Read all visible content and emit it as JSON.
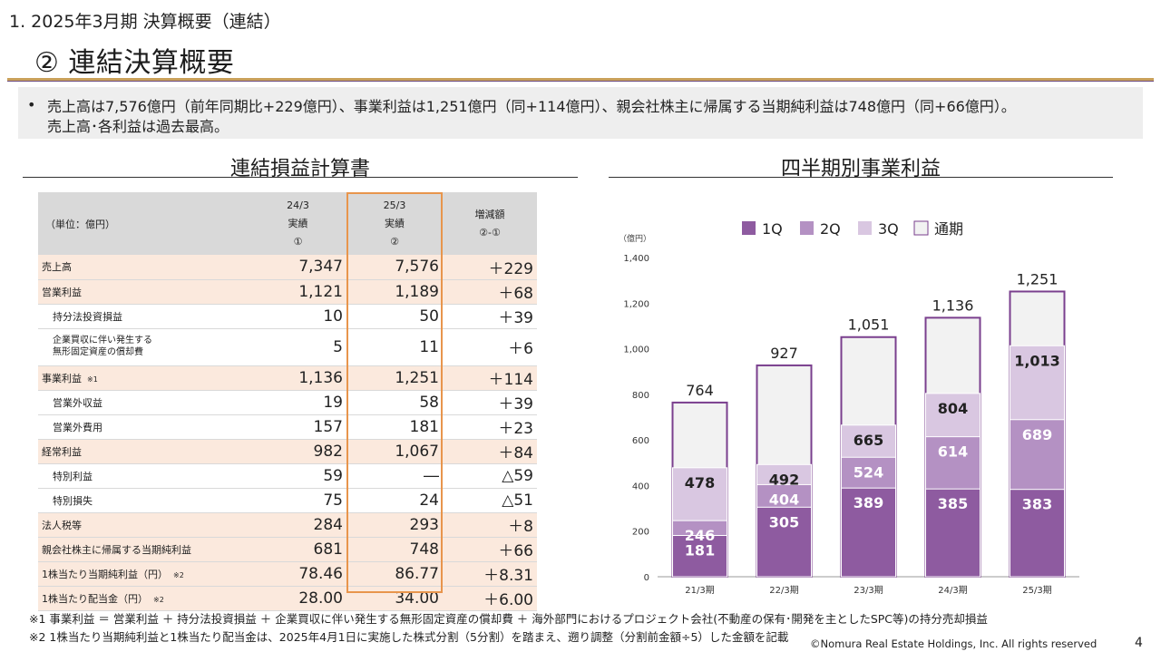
{
  "header": {
    "section_title": "1. 2025年3月期 決算概要（連結）",
    "page_title": "② 連結決算概要"
  },
  "summary": {
    "bullet": "•",
    "line1": "売上高は7,576億円（前年同期比+229億円）、事業利益は1,251億円（同+114億円）、親会社株主に帰属する当期純利益は748億円（同+66億円）。",
    "line2": "売上高･各利益は過去最高。"
  },
  "left_panel": {
    "heading": "連結損益計算書",
    "table": {
      "unit_label": "（単位：億円）",
      "columns": [
        {
          "period": "24/3",
          "kind": "実績",
          "marker": "①"
        },
        {
          "period": "25/3",
          "kind": "実績",
          "marker": "②"
        },
        {
          "period": "",
          "kind": "増減額",
          "marker": "②-①"
        }
      ],
      "rows": [
        {
          "label": "売上高",
          "note": "",
          "v1": "7,347",
          "v2": "7,576",
          "diff": "＋229",
          "style": "main"
        },
        {
          "label": "営業利益",
          "note": "",
          "v1": "1,121",
          "v2": "1,189",
          "diff": "＋68",
          "style": "main"
        },
        {
          "label": "持分法投資損益",
          "note": "",
          "v1": "10",
          "v2": "50",
          "diff": "＋39",
          "style": "sub"
        },
        {
          "label": "企業買収に伴い発生する",
          "label2": "無形固定資産の償却費",
          "note": "",
          "v1": "5",
          "v2": "11",
          "diff": "＋6",
          "style": "sub-tall"
        },
        {
          "label": "事業利益",
          "note": "※1",
          "v1": "1,136",
          "v2": "1,251",
          "diff": "＋114",
          "style": "main"
        },
        {
          "label": "営業外収益",
          "note": "",
          "v1": "19",
          "v2": "58",
          "diff": "＋39",
          "style": "sub"
        },
        {
          "label": "営業外費用",
          "note": "",
          "v1": "157",
          "v2": "181",
          "diff": "＋23",
          "style": "sub"
        },
        {
          "label": "経常利益",
          "note": "",
          "v1": "982",
          "v2": "1,067",
          "diff": "＋84",
          "style": "main"
        },
        {
          "label": "特別利益",
          "note": "",
          "v1": "59",
          "v2": "―",
          "diff": "△59",
          "style": "sub"
        },
        {
          "label": "特別損失",
          "note": "",
          "v1": "75",
          "v2": "24",
          "diff": "△51",
          "style": "sub"
        },
        {
          "label": "法人税等",
          "note": "",
          "v1": "284",
          "v2": "293",
          "diff": "＋8",
          "style": "main"
        },
        {
          "label": "親会社株主に帰属する当期純利益",
          "note": "",
          "v1": "681",
          "v2": "748",
          "diff": "＋66",
          "style": "main"
        },
        {
          "label": "1株当たり当期純利益（円）",
          "note": "※2",
          "v1": "78.46",
          "v2": "86.77",
          "diff": "＋8.31",
          "style": "main"
        },
        {
          "label": "1株当たり配当金（円）",
          "note": "※2",
          "v1": "28.00",
          "v2": "34.00",
          "diff": "＋6.00",
          "style": "main"
        }
      ]
    }
  },
  "right_panel": {
    "heading": "四半期別事業利益"
  },
  "chart_data": {
    "type": "bar",
    "title": "",
    "unit_label": "（億円）",
    "categories": [
      "21/3期",
      "22/3期",
      "23/3期",
      "24/3期",
      "25/3期"
    ],
    "ylim": [
      0,
      1400
    ],
    "yticks": [
      "0",
      "200",
      "400",
      "600",
      "800",
      "1,000",
      "1,200",
      "1,400"
    ],
    "ytick_values": [
      0,
      200,
      400,
      600,
      800,
      1000,
      1200,
      1400
    ],
    "legend_position": "top",
    "grid": false,
    "series": [
      {
        "name": "1Q",
        "cumulative": [
          181,
          305,
          389,
          385,
          383
        ],
        "labels": [
          "181",
          "305",
          "389",
          "385",
          "383"
        ],
        "color": "#8e5ba0"
      },
      {
        "name": "2Q",
        "cumulative": [
          246,
          404,
          524,
          614,
          689
        ],
        "labels": [
          "246",
          "404",
          "524",
          "614",
          "689"
        ],
        "color": "#b491c3"
      },
      {
        "name": "3Q",
        "cumulative": [
          478,
          492,
          665,
          804,
          1013
        ],
        "labels": [
          "478",
          "492",
          "665",
          "804",
          "1,013"
        ],
        "color": "#d9c7e1"
      },
      {
        "name": "通期",
        "cumulative": [
          764,
          927,
          1051,
          1136,
          1251
        ],
        "labels": [
          "764",
          "927",
          "1,051",
          "1,136",
          "1,251"
        ],
        "color": "#f2f2f2"
      }
    ],
    "outline_color": "#7a3f8e"
  },
  "footnotes": {
    "note1": "※1 事業利益 ＝ 営業利益 ＋ 持分法投資損益 ＋ 企業買収に伴い発生する無形固定資産の償却費 ＋ 海外部門におけるプロジェクト会社(不動産の保有･開発を主としたSPC等)の持分売却損益",
    "note2": "※2 1株当たり当期純利益と1株当たり配当金は、2025年4月1日に実施した株式分割（5分割）を踏まえ、遡り調整（分割前金額÷5）した金額を記載"
  },
  "footer": {
    "copyright": "©Nomura Real Estate Holdings, Inc. All rights reserved",
    "page_number": "4"
  }
}
